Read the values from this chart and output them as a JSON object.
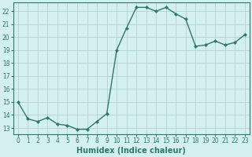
{
  "x": [
    0,
    1,
    2,
    3,
    4,
    5,
    6,
    7,
    8,
    9,
    10,
    11,
    12,
    13,
    14,
    15,
    16,
    17,
    18,
    19,
    20,
    21,
    22,
    23
  ],
  "y": [
    15.0,
    13.7,
    13.5,
    13.8,
    13.3,
    13.2,
    12.9,
    12.9,
    13.5,
    14.1,
    19.0,
    20.7,
    22.3,
    22.3,
    22.0,
    22.3,
    21.8,
    21.4,
    19.3,
    19.4,
    19.7,
    19.4,
    19.6,
    20.2
  ],
  "line_color": "#2a7a6a",
  "marker": "D",
  "marker_size": 2.2,
  "bg_color": "#d4f0ee",
  "grid_major_color": "#b8cece",
  "grid_minor_color": "#cce4e4",
  "xlabel": "Humidex (Indice chaleur)",
  "xlim": [
    -0.5,
    23.5
  ],
  "ylim": [
    12.5,
    22.7
  ],
  "yticks": [
    13,
    14,
    15,
    16,
    17,
    18,
    19,
    20,
    21,
    22
  ],
  "xticks": [
    0,
    1,
    2,
    3,
    4,
    5,
    6,
    7,
    8,
    9,
    10,
    11,
    12,
    13,
    14,
    15,
    16,
    17,
    18,
    19,
    20,
    21,
    22,
    23
  ],
  "tick_fontsize": 5.5,
  "label_fontsize": 7,
  "line_width": 1.0
}
